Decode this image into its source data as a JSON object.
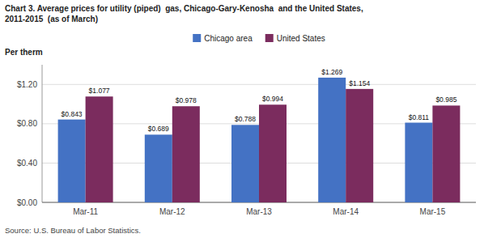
{
  "chart_data": {
    "type": "bar",
    "title": "Chart 3. Average prices for utility (piped)  gas, Chicago-Gary-Kenosha  and the United States,",
    "subtitle": "2011-2015  (as of March)",
    "y_label": "Per therm",
    "annotations": [
      "Source: U.S. Bureau of Labor Statistics."
    ],
    "categories": [
      "Mar-11",
      "Mar-12",
      "Mar-13",
      "Mar-14",
      "Mar-15"
    ],
    "series": [
      {
        "name": "Chicago area",
        "color": "#4472C4",
        "values": [
          0.843,
          0.689,
          0.788,
          1.269,
          0.811
        ],
        "value_labels": [
          "$0.843",
          "$0.689",
          "$0.788",
          "$1.269",
          "$0.811"
        ]
      },
      {
        "name": "United States",
        "color": "#7B2C5E",
        "values": [
          1.077,
          0.978,
          0.994,
          1.154,
          0.985
        ],
        "value_labels": [
          "$1.077",
          "$0.978",
          "$0.994",
          "$1.154",
          "$0.985"
        ]
      }
    ],
    "ylim": [
      0,
      1.4
    ],
    "yticks": [
      {
        "value": 0.0,
        "label": "$0.00"
      },
      {
        "value": 0.4,
        "label": "$0.40"
      },
      {
        "value": 0.8,
        "label": "$0.80"
      },
      {
        "value": 1.2,
        "label": "$1.20"
      }
    ],
    "grid": true,
    "legend": "top",
    "data_labels": true
  }
}
